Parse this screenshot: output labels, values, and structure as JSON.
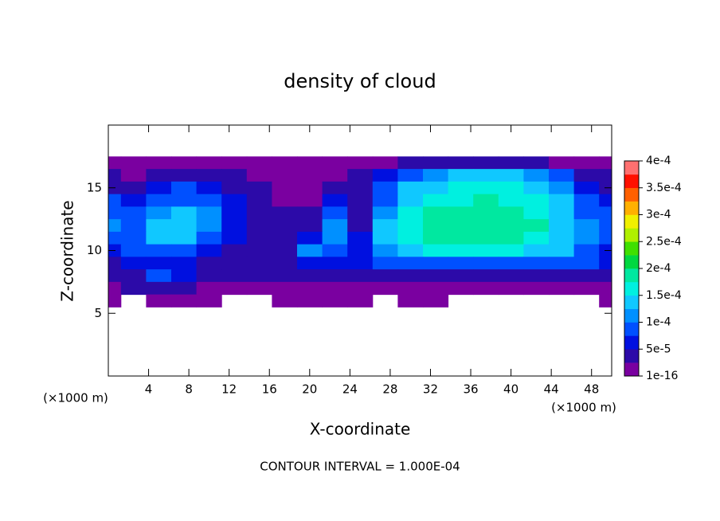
{
  "chart_data": {
    "type": "heatmap",
    "title": "density of cloud",
    "x_label": "X-coordinate",
    "y_label": "Z-coordinate",
    "x_unit_label": "(×1000 m)",
    "y_unit_label": "(×1000 m)",
    "footer": "CONTOUR INTERVAL = 1.000E-04",
    "xlim": [
      0,
      50
    ],
    "ylim": [
      0,
      20
    ],
    "xticks": [
      4,
      8,
      12,
      16,
      20,
      24,
      28,
      32,
      36,
      40,
      44,
      48
    ],
    "yticks": [
      5,
      10,
      15
    ],
    "x": [
      0,
      2.5,
      5,
      7.5,
      10,
      12.5,
      15,
      17.5,
      20,
      22.5,
      25,
      27.5,
      30,
      32.5,
      35,
      37.5,
      40,
      42.5,
      45,
      47.5,
      50
    ],
    "y": [
      17,
      16,
      15,
      14,
      13,
      12,
      11,
      10,
      9,
      8,
      7,
      6
    ],
    "z": [
      [
        1e-05,
        1e-05,
        1e-05,
        1e-05,
        1e-05,
        1e-05,
        1e-05,
        1e-05,
        1e-05,
        1e-05,
        1e-05,
        2e-05,
        3e-05,
        3e-05,
        3e-05,
        3e-05,
        3e-05,
        3e-05,
        2e-05,
        1e-05,
        1e-05
      ],
      [
        3e-05,
        2e-05,
        3e-05,
        4e-05,
        3e-05,
        3e-05,
        2e-05,
        1e-05,
        1e-05,
        2e-05,
        3e-05,
        6e-05,
        9e-05,
        0.00012,
        0.00014,
        0.00014,
        0.00014,
        0.00012,
        8e-05,
        4e-05,
        3e-05
      ],
      [
        5e-05,
        4e-05,
        6e-05,
        8e-05,
        7e-05,
        5e-05,
        3e-05,
        1e-05,
        1e-05,
        4e-05,
        5e-05,
        8e-05,
        0.00013,
        0.00015,
        0.00016,
        0.00016,
        0.00016,
        0.00015,
        0.00012,
        6e-05,
        4e-05
      ],
      [
        8e-05,
        6e-05,
        9e-05,
        0.0001,
        9e-05,
        6e-05,
        4e-05,
        2e-05,
        2e-05,
        6e-05,
        4e-05,
        0.0001,
        0.00015,
        0.00017,
        0.00017,
        0.00018,
        0.00017,
        0.00016,
        0.00014,
        8e-05,
        6e-05
      ],
      [
        0.0001,
        8e-05,
        0.00012,
        0.00014,
        0.00012,
        7e-05,
        5e-05,
        3e-05,
        3e-05,
        9e-05,
        4e-05,
        0.00012,
        0.00016,
        0.00018,
        0.00019,
        0.00019,
        0.00019,
        0.00017,
        0.00015,
        0.0001,
        8e-05
      ],
      [
        0.00011,
        9e-05,
        0.00013,
        0.00015,
        0.00012,
        7e-05,
        5e-05,
        3e-05,
        4e-05,
        0.00012,
        5e-05,
        0.00013,
        0.00017,
        0.00019,
        0.00019,
        0.0002,
        0.00019,
        0.00018,
        0.00015,
        0.00011,
        9e-05
      ],
      [
        9e-05,
        0.0001,
        0.00014,
        0.00014,
        0.0001,
        6e-05,
        4e-05,
        4e-05,
        7e-05,
        0.00012,
        6e-05,
        0.00013,
        0.00017,
        0.00019,
        0.00019,
        0.00019,
        0.00019,
        0.00017,
        0.00015,
        0.00011,
        8e-05
      ],
      [
        7e-05,
        8e-05,
        0.0001,
        9e-05,
        7e-05,
        5e-05,
        4e-05,
        5e-05,
        0.00011,
        0.0001,
        7e-05,
        0.00012,
        0.00015,
        0.00016,
        0.00016,
        0.00016,
        0.00016,
        0.00015,
        0.00014,
        0.0001,
        7e-05
      ],
      [
        5e-05,
        6e-05,
        7e-05,
        6e-05,
        5e-05,
        4e-05,
        3e-05,
        5e-05,
        7e-05,
        6e-05,
        6e-05,
        8e-05,
        9e-05,
        9e-05,
        9e-05,
        9e-05,
        9e-05,
        9e-05,
        9e-05,
        8e-05,
        6e-05
      ],
      [
        3e-05,
        4e-05,
        9e-05,
        6e-05,
        4e-05,
        3e-05,
        3e-05,
        3e-05,
        4e-05,
        4e-05,
        4e-05,
        4e-05,
        4e-05,
        4e-05,
        4e-05,
        4e-05,
        4e-05,
        4e-05,
        4e-05,
        4e-05,
        3e-05
      ],
      [
        2e-05,
        3e-05,
        3e-05,
        3e-05,
        2e-05,
        2e-05,
        2e-05,
        2e-05,
        2e-05,
        2e-05,
        2e-05,
        2e-05,
        2e-05,
        2e-05,
        2e-05,
        2e-05,
        2e-05,
        2e-05,
        2e-05,
        2e-05,
        2e-05
      ],
      [
        1e-05,
        null,
        1e-05,
        1e-05,
        1e-05,
        null,
        null,
        1e-05,
        1e-05,
        1e-05,
        1e-05,
        null,
        1e-05,
        1e-05,
        null,
        null,
        null,
        null,
        null,
        null,
        1e-05
      ]
    ],
    "clim": [
      1e-16,
      0.0004
    ],
    "colorbar_ticks": [
      {
        "value": 1e-16,
        "label": "1e-16"
      },
      {
        "value": 5e-05,
        "label": "5e-5"
      },
      {
        "value": 0.0001,
        "label": "1e-4"
      },
      {
        "value": 0.00015,
        "label": "1.5e-4"
      },
      {
        "value": 0.0002,
        "label": "2e-4"
      },
      {
        "value": 0.00025,
        "label": "2.5e-4"
      },
      {
        "value": 0.0003,
        "label": "3e-4"
      },
      {
        "value": 0.00035,
        "label": "3.5e-4"
      },
      {
        "value": 0.0004,
        "label": "4e-4"
      }
    ],
    "colors": [
      "#7a00a0",
      "#2c0aa8",
      "#0010e0",
      "#0050ff",
      "#0090ff",
      "#10c8ff",
      "#00f0e0",
      "#00e8a0",
      "#00d840",
      "#40e000",
      "#b0f000",
      "#f0f000",
      "#ffb000",
      "#ff6000",
      "#ff1000",
      "#ff7070"
    ]
  }
}
